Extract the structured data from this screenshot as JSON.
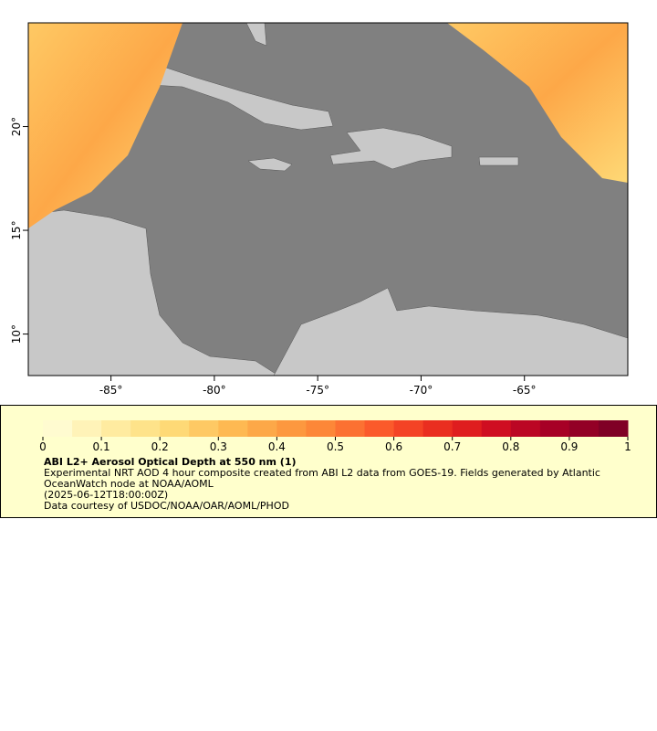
{
  "map": {
    "xlim": [
      -89,
      -60
    ],
    "ylim": [
      8,
      25
    ],
    "xticks": [
      {
        "value": -85,
        "label": "-85°"
      },
      {
        "value": -80,
        "label": "-80°"
      },
      {
        "value": -75,
        "label": "-75°"
      },
      {
        "value": -70,
        "label": "-70°"
      },
      {
        "value": -65,
        "label": "-65°"
      }
    ],
    "yticks": [
      {
        "value": 10,
        "label": "10°"
      },
      {
        "value": 15,
        "label": "15°"
      },
      {
        "value": 20,
        "label": "20°"
      }
    ],
    "ocean_color": "#808080",
    "land_color": "#c8c8c8"
  },
  "colorbar": {
    "range": [
      0,
      1
    ],
    "ticks": [
      0,
      0.1,
      0.2,
      0.3,
      0.4,
      0.5,
      0.6,
      0.7,
      0.8,
      0.9,
      1
    ],
    "colors": [
      "#fffbd0",
      "#fff3b8",
      "#ffeba0",
      "#fee38a",
      "#fed976",
      "#fec964",
      "#feb952",
      "#fda848",
      "#fd983f",
      "#fd8738",
      "#fc7132",
      "#fb5a2b",
      "#f44325",
      "#ea2e20",
      "#df1d1f",
      "#cf0e21",
      "#bb0624",
      "#a70026",
      "#930026",
      "#800026"
    ]
  },
  "legend": {
    "title": "ABI L2+ Aerosol Optical Depth at 550 nm (1)",
    "description": "Experimental NRT AOD 4 hour composite created from ABI L2 data from GOES-19. Fields generated by Atlantic OceanWatch node at NOAA/AOML",
    "time": "(2025-06-12T18:00:00Z)",
    "credit": "Data courtesy of USDOC/NOAA/OAR/AOML/PHOD"
  }
}
